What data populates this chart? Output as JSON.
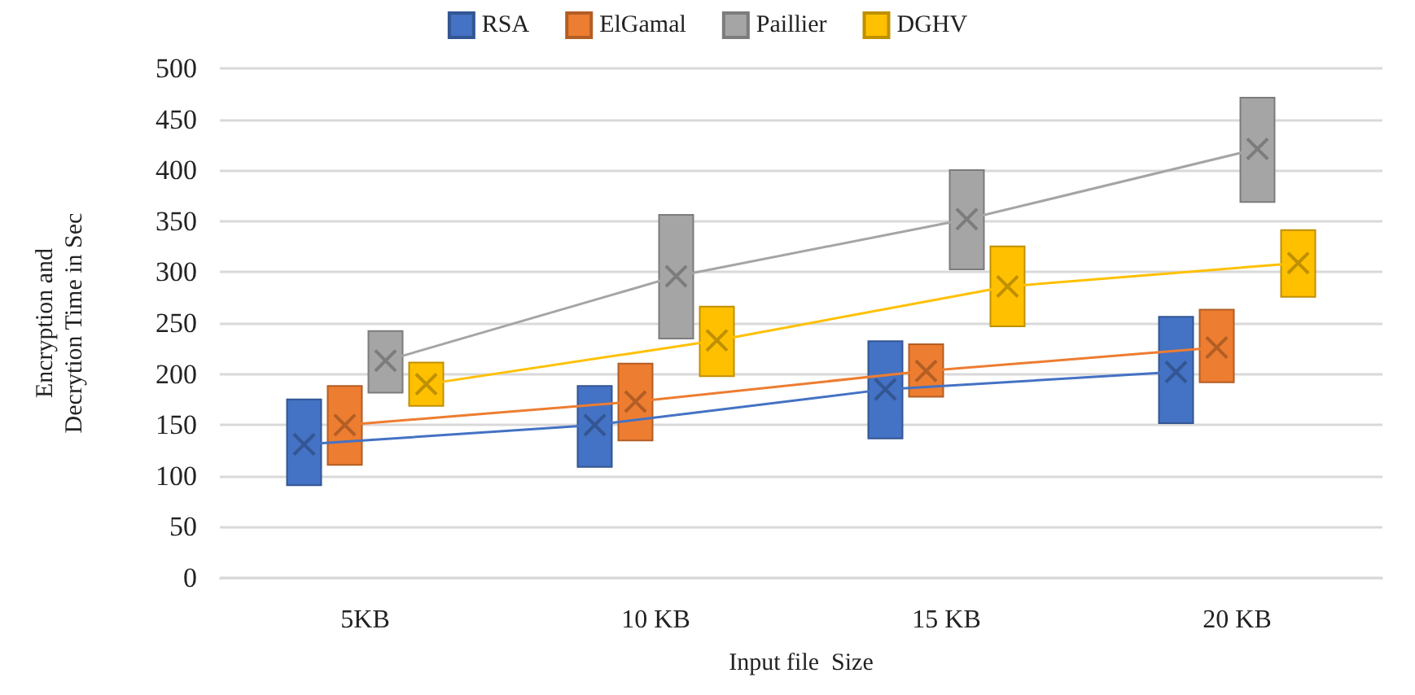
{
  "chart_data": {
    "type": "bar",
    "xlabel": "Input file  Size",
    "ylabel": "Encryption and Decrytion Time in Sec",
    "categories": [
      "5KB",
      "10 KB",
      "15 KB",
      "20 KB"
    ],
    "ylim": [
      0,
      500
    ],
    "yticks": [
      0,
      50,
      100,
      150,
      200,
      250,
      300,
      350,
      400,
      450,
      500
    ],
    "grid": "y",
    "legend": "top",
    "series": [
      {
        "name": "RSA",
        "color": "#4472c4",
        "base": [
          90,
          108,
          136,
          151
        ],
        "values": [
          86,
          81,
          97,
          106
        ]
      },
      {
        "name": "ElGamal",
        "color": "#ed7d31",
        "base": [
          110,
          134,
          177,
          191
        ],
        "values": [
          79,
          77,
          53,
          73
        ]
      },
      {
        "name": "Paillier",
        "color": "#a5a5a5",
        "base": [
          181,
          234,
          302,
          368
        ],
        "values": [
          62,
          123,
          99,
          104
        ]
      },
      {
        "name": "DGHV",
        "color": "#ffc000",
        "base": [
          168,
          197,
          246,
          275
        ],
        "values": [
          44,
          70,
          80,
          67
        ]
      },
      {
        "type": "line",
        "color": "#4472c4",
        "marker": "cross",
        "values": [
          131,
          150,
          185,
          202
        ]
      },
      {
        "type": "line",
        "color": "#ed7d31",
        "marker": "cross",
        "values": [
          150,
          173,
          203,
          226
        ]
      },
      {
        "type": "line",
        "color": "#a5a5a5",
        "marker": "cross",
        "values": [
          213,
          296,
          352,
          421
        ]
      },
      {
        "type": "line",
        "color": "#ffc000",
        "marker": "cross",
        "values": [
          190,
          233,
          286,
          309
        ]
      }
    ]
  }
}
